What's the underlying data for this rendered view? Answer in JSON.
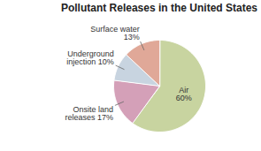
{
  "chart_data": {
    "type": "pie",
    "title": "Pollutant Releases in the United States",
    "categories": [
      "Air\n60%",
      "Onsite land\nreleases 17%",
      "Underground\ninjection 10%",
      "Surface water\n13%"
    ],
    "values": [
      60,
      17,
      10,
      13
    ],
    "colors": [
      "#c8d4a0",
      "#d4a0b8",
      "#c8d4e0",
      "#e0a898"
    ]
  }
}
